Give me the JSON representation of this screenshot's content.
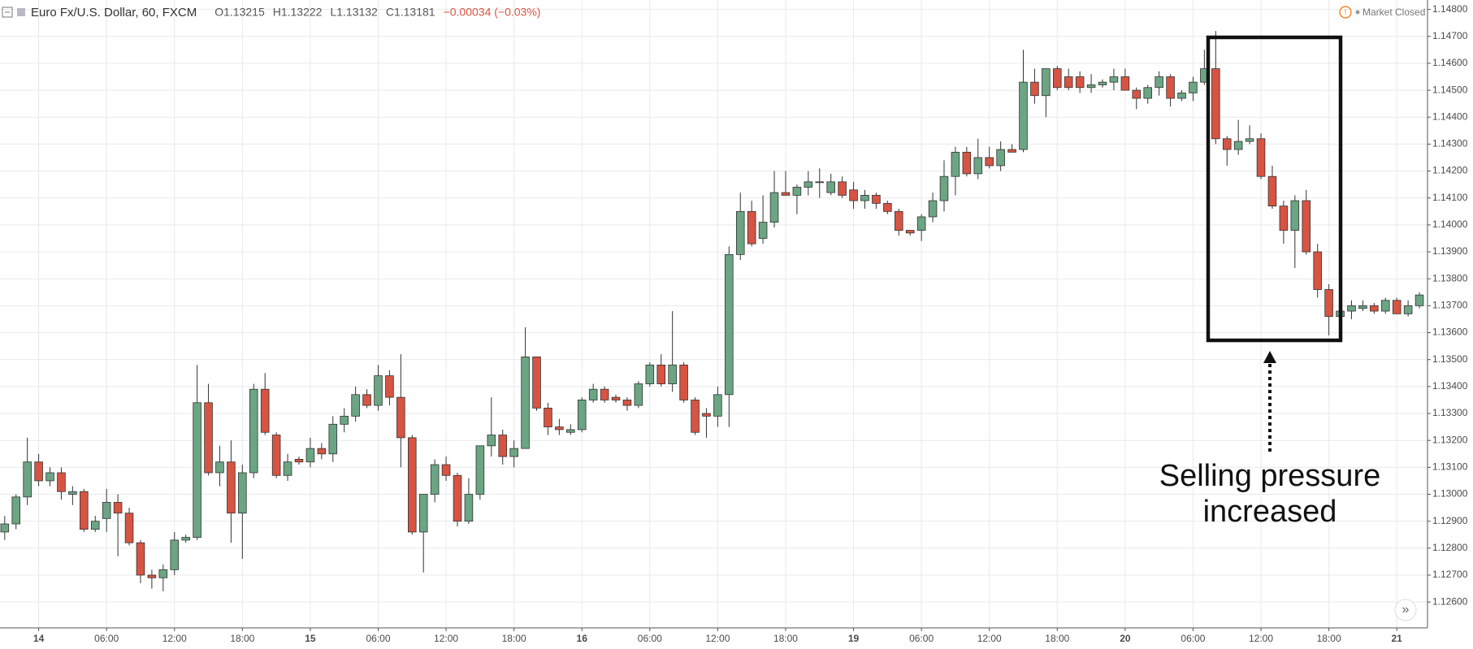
{
  "chart_data": {
    "type": "candlestick",
    "title": "Euro Fx/U.S. Dollar, 60, FXCM",
    "ohlc_summary": [
      "O1.13215",
      "H1.13222",
      "L1.13132",
      "C1.13181",
      "−0.00034 (−0.03%)"
    ],
    "status": "Market Closed",
    "annotation": [
      "Selling pressure",
      "increased"
    ],
    "up_color": "#6ba583",
    "down_color": "#d75442",
    "grid": true,
    "categories": [
      null,
      null,
      null,
      "14",
      null,
      null,
      null,
      null,
      null,
      "06:00",
      null,
      null,
      null,
      null,
      null,
      "12:00",
      null,
      null,
      null,
      null,
      null,
      "18:00",
      null,
      null,
      null,
      null,
      null,
      "15",
      null,
      null,
      null,
      null,
      null,
      "06:00",
      null,
      null,
      null,
      null,
      null,
      "12:00",
      null,
      null,
      null,
      null,
      null,
      "18:00",
      null,
      null,
      null,
      null,
      null,
      "16",
      null,
      null,
      null,
      null,
      null,
      "06:00",
      null,
      null,
      null,
      null,
      null,
      "12:00",
      null,
      null,
      null,
      null,
      null,
      "18:00",
      null,
      null,
      null,
      null,
      null,
      "19",
      null,
      null,
      null,
      null,
      null,
      "06:00",
      null,
      null,
      null,
      null,
      null,
      "12:00",
      null,
      null,
      null,
      null,
      null,
      "18:00",
      null,
      null,
      null,
      null,
      null,
      "20",
      null,
      null,
      null,
      null,
      null,
      "06:00",
      null,
      null,
      null,
      null,
      null,
      "12:00",
      null,
      null,
      null,
      null,
      null,
      "18:00",
      null,
      null,
      null,
      null,
      null,
      "21",
      null,
      null
    ],
    "open": [
      1.1286,
      1.1289,
      1.1299,
      1.1312,
      1.1305,
      1.1308,
      1.13,
      1.1301,
      1.1287,
      1.1291,
      1.1297,
      1.1293,
      1.1282,
      1.127,
      1.1269,
      1.1272,
      1.1283,
      1.1284,
      1.1334,
      1.1308,
      1.1312,
      1.1293,
      1.1308,
      1.1339,
      1.1322,
      1.1307,
      1.1313,
      1.1312,
      1.1317,
      1.1315,
      1.1326,
      1.1329,
      1.1337,
      1.1333,
      1.1344,
      1.1336,
      1.1321,
      1.1286,
      1.13,
      1.1311,
      1.1307,
      1.129,
      1.13,
      1.1318,
      1.1322,
      1.1314,
      1.1317,
      1.1351,
      1.1332,
      1.1325,
      1.1323,
      1.1324,
      1.1335,
      1.1339,
      1.1336,
      1.1335,
      1.1333,
      1.1341,
      1.1348,
      1.1341,
      1.1348,
      1.1335,
      1.133,
      1.1329,
      1.1337,
      1.1389,
      1.1405,
      1.1395,
      1.1401,
      1.1412,
      1.1411,
      1.1414,
      1.1416,
      1.1412,
      1.1416,
      1.1413,
      1.1409,
      1.1411,
      1.1408,
      1.1405,
      1.1398,
      1.1398,
      1.1403,
      1.1409,
      1.1418,
      1.1427,
      1.1419,
      1.1425,
      1.1422,
      1.1428,
      1.1428,
      1.1453,
      1.1448,
      1.1458,
      1.1455,
      1.1455,
      1.1451,
      1.1452,
      1.1453,
      1.1455,
      1.145,
      1.1447,
      1.1451,
      1.1455,
      1.1447,
      1.1449,
      1.1453,
      1.1458,
      1.1432,
      1.1428,
      1.1431,
      1.1432,
      1.1418,
      1.1407,
      1.1398,
      1.1409,
      1.139,
      1.1376,
      1.1366,
      1.1368,
      1.1369,
      1.137,
      1.1368,
      1.1372,
      1.1367,
      1.137
    ],
    "high": [
      1.1292,
      1.13,
      1.1321,
      1.1315,
      1.131,
      1.131,
      1.1303,
      1.1302,
      1.1292,
      1.1302,
      1.13,
      1.1295,
      1.1283,
      1.1272,
      1.1274,
      1.1286,
      1.1285,
      1.1348,
      1.1341,
      1.1318,
      1.132,
      1.1311,
      1.1341,
      1.1345,
      1.1323,
      1.1315,
      1.1314,
      1.1321,
      1.1319,
      1.1329,
      1.1332,
      1.134,
      1.1339,
      1.1348,
      1.1346,
      1.1352,
      1.1322,
      1.13,
      1.1313,
      1.1314,
      1.1308,
      1.1306,
      1.1318,
      1.1336,
      1.1324,
      1.132,
      1.1362,
      1.1351,
      1.1334,
      1.1328,
      1.1326,
      1.1336,
      1.1341,
      1.134,
      1.1337,
      1.1336,
      1.1342,
      1.1349,
      1.1352,
      1.1368,
      1.1349,
      1.1336,
      1.1332,
      1.134,
      1.1392,
      1.1412,
      1.1409,
      1.1411,
      1.142,
      1.142,
      1.1415,
      1.142,
      1.1421,
      1.1419,
      1.1418,
      1.1416,
      1.1413,
      1.1412,
      1.1409,
      1.1406,
      1.1398,
      1.1404,
      1.1412,
      1.1424,
      1.1429,
      1.1429,
      1.1432,
      1.1429,
      1.1431,
      1.143,
      1.1465,
      1.1458,
      1.1458,
      1.1459,
      1.1458,
      1.1457,
      1.1456,
      1.1454,
      1.1458,
      1.1458,
      1.1451,
      1.1452,
      1.1457,
      1.1456,
      1.145,
      1.1455,
      1.1465,
      1.1472,
      1.1433,
      1.1439,
      1.1437,
      1.1434,
      1.1422,
      1.1409,
      1.1411,
      1.1413,
      1.1393,
      1.1378,
      1.137,
      1.1372,
      1.1372,
      1.1371,
      1.1373,
      1.1373,
      1.1372,
      1.1375
    ],
    "low": [
      1.1283,
      1.1287,
      1.1296,
      1.1303,
      1.1303,
      1.1298,
      1.1296,
      1.1286,
      1.1286,
      1.1286,
      1.1277,
      1.1281,
      1.1267,
      1.1265,
      1.1264,
      1.127,
      1.1282,
      1.1283,
      1.1307,
      1.1303,
      1.1282,
      1.1276,
      1.1306,
      1.1322,
      1.1306,
      1.1305,
      1.1311,
      1.131,
      1.1313,
      1.1312,
      1.1323,
      1.1327,
      1.1332,
      1.1331,
      1.1333,
      1.131,
      1.1285,
      1.1271,
      1.1297,
      1.1305,
      1.1288,
      1.1289,
      1.1298,
      1.1314,
      1.1311,
      1.131,
      1.1317,
      1.1331,
      1.1322,
      1.1322,
      1.1322,
      1.1323,
      1.1334,
      1.1334,
      1.1334,
      1.1331,
      1.1332,
      1.134,
      1.134,
      1.1338,
      1.1334,
      1.1322,
      1.1321,
      1.1325,
      1.1325,
      1.1387,
      1.1392,
      1.1393,
      1.1399,
      1.1411,
      1.1404,
      1.1411,
      1.141,
      1.1411,
      1.141,
      1.1406,
      1.1406,
      1.1406,
      1.1404,
      1.1396,
      1.1396,
      1.1394,
      1.1401,
      1.1405,
      1.1411,
      1.1418,
      1.1417,
      1.1421,
      1.142,
      1.1427,
      1.1427,
      1.1445,
      1.144,
      1.145,
      1.145,
      1.1449,
      1.1449,
      1.1451,
      1.145,
      1.145,
      1.1443,
      1.1445,
      1.1448,
      1.1444,
      1.1446,
      1.1446,
      1.1452,
      1.143,
      1.1422,
      1.1426,
      1.143,
      1.1417,
      1.1406,
      1.1393,
      1.1384,
      1.1389,
      1.1373,
      1.1359,
      1.1363,
      1.1365,
      1.1368,
      1.1367,
      1.1367,
      1.1367,
      1.1366,
      1.1369
    ],
    "close": [
      1.1289,
      1.1299,
      1.1312,
      1.1305,
      1.1308,
      1.1301,
      1.1301,
      1.1287,
      1.129,
      1.1297,
      1.1293,
      1.1282,
      1.127,
      1.1269,
      1.1272,
      1.1283,
      1.1284,
      1.1334,
      1.1308,
      1.1312,
      1.1293,
      1.1308,
      1.1339,
      1.1323,
      1.1307,
      1.1312,
      1.1312,
      1.1317,
      1.1315,
      1.1326,
      1.1329,
      1.1337,
      1.1333,
      1.1344,
      1.1336,
      1.1321,
      1.1286,
      1.13,
      1.1311,
      1.1307,
      1.129,
      1.13,
      1.1318,
      1.1322,
      1.1314,
      1.1317,
      1.1351,
      1.1332,
      1.1325,
      1.1324,
      1.1324,
      1.1335,
      1.1339,
      1.1335,
      1.1335,
      1.1333,
      1.1341,
      1.1348,
      1.1341,
      1.1348,
      1.1335,
      1.1323,
      1.1329,
      1.1337,
      1.1389,
      1.1405,
      1.1393,
      1.1401,
      1.1412,
      1.1411,
      1.1414,
      1.1416,
      1.1416,
      1.1416,
      1.1411,
      1.1409,
      1.1411,
      1.1408,
      1.1405,
      1.1398,
      1.1397,
      1.1403,
      1.1409,
      1.1418,
      1.1427,
      1.1419,
      1.1425,
      1.1422,
      1.1428,
      1.1427,
      1.1453,
      1.1448,
      1.1458,
      1.1451,
      1.1451,
      1.1451,
      1.1452,
      1.1453,
      1.1455,
      1.145,
      1.1447,
      1.1451,
      1.1455,
      1.1447,
      1.1449,
      1.1453,
      1.1458,
      1.1432,
      1.1428,
      1.1431,
      1.1432,
      1.1418,
      1.1407,
      1.1398,
      1.1409,
      1.139,
      1.1376,
      1.1366,
      1.1368,
      1.137,
      1.137,
      1.1368,
      1.1372,
      1.1367,
      1.137,
      1.1374
    ],
    "ylim": [
      1.12504,
      1.14835
    ],
    "yticks": [
      {
        "value": 1.126,
        "label": "1.12600"
      },
      {
        "value": 1.127,
        "label": "1.12700"
      },
      {
        "value": 1.128,
        "label": "1.12800"
      },
      {
        "value": 1.129,
        "label": "1.12900"
      },
      {
        "value": 1.13,
        "label": "1.13000"
      },
      {
        "value": 1.131,
        "label": "1.13100"
      },
      {
        "value": 1.132,
        "label": "1.13200"
      },
      {
        "value": 1.133,
        "label": "1.13300"
      },
      {
        "value": 1.134,
        "label": "1.13400"
      },
      {
        "value": 1.135,
        "label": "1.13500"
      },
      {
        "value": 1.136,
        "label": "1.13600"
      },
      {
        "value": 1.137,
        "label": "1.13700"
      },
      {
        "value": 1.138,
        "label": "1.13800"
      },
      {
        "value": 1.139,
        "label": "1.13900"
      },
      {
        "value": 1.14,
        "label": "1.14000"
      },
      {
        "value": 1.141,
        "label": "1.14100"
      },
      {
        "value": 1.142,
        "label": "1.14200"
      },
      {
        "value": 1.143,
        "label": "1.14300"
      },
      {
        "value": 1.144,
        "label": "1.14400"
      },
      {
        "value": 1.145,
        "label": "1.14500"
      },
      {
        "value": 1.146,
        "label": "1.14600"
      },
      {
        "value": 1.147,
        "label": "1.14700"
      },
      {
        "value": 1.148,
        "label": "1.14800"
      }
    ]
  }
}
